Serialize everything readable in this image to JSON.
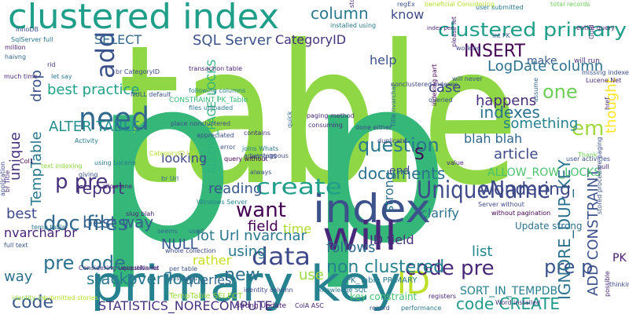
{
  "words": [
    {
      "text": "table",
      "color": "#8fd744"
    },
    {
      "text": "p p",
      "color": "#35b779"
    },
    {
      "text": "primary key",
      "color": "#26828e"
    },
    {
      "text": "clustered index",
      "color": "#1f9e89"
    },
    {
      "text": "index",
      "color": "#3b528b"
    },
    {
      "text": "will",
      "color": "#482878"
    },
    {
      "text": "need",
      "color": "#31688e"
    },
    {
      "text": "ID",
      "color": "#bddf26"
    },
    {
      "text": "clustered primary",
      "color": "#1f9e89"
    },
    {
      "text": "UniqueName",
      "color": "#3e4a89"
    },
    {
      "text": "create",
      "color": "#1f9e89"
    },
    {
      "text": "data",
      "color": "#3e4a89"
    },
    {
      "text": "add",
      "color": "#3b528b"
    },
    {
      "text": "want",
      "color": "#440154"
    },
    {
      "text": "question",
      "color": "#2a788e"
    },
    {
      "text": "doc files",
      "color": "#31688e"
    },
    {
      "text": "p pre",
      "color": "#46327e"
    },
    {
      "text": "pre p",
      "color": "#3b528b"
    },
    {
      "text": "code pre",
      "color": "#482878"
    },
    {
      "text": "pre code",
      "color": "#2c728e"
    },
    {
      "text": "code",
      "color": "#38588c"
    },
    {
      "text": "INSERT",
      "color": "#440154"
    },
    {
      "text": "column",
      "color": "#2a788e"
    },
    {
      "text": "SQL Server",
      "color": "#3b528b"
    },
    {
      "text": "CategoryID",
      "color": "#46337e"
    },
    {
      "text": "SELECT",
      "color": "#31688e"
    },
    {
      "text": "know",
      "color": "#3e4a89"
    },
    {
      "text": "make",
      "color": "#365d8d"
    },
    {
      "text": "LogDate column",
      "color": "#2c728e"
    },
    {
      "text": "one",
      "color": "#6ece58"
    },
    {
      "text": "help",
      "color": "#3b528b"
    },
    {
      "text": "case",
      "color": "#3e4a89"
    },
    {
      "text": "happens",
      "color": "#472d7b"
    },
    {
      "text": "indexes",
      "color": "#2c728e"
    },
    {
      "text": "em",
      "color": "#9fda3a"
    },
    {
      "text": "thought",
      "color": "#fde725"
    },
    {
      "text": "drop",
      "color": "#3b528b"
    },
    {
      "text": "best practice",
      "color": "#1fa187"
    },
    {
      "text": "ALTER TABLE",
      "color": "#228d8d"
    },
    {
      "text": "unique",
      "color": "#46327e"
    },
    {
      "text": "TempTable",
      "color": "#2a788e"
    },
    {
      "text": "report",
      "color": "#46337e"
    },
    {
      "text": "best way",
      "color": "#355f8d"
    },
    {
      "text": "best",
      "color": "#3e4a89"
    },
    {
      "text": "nvarchar br",
      "color": "#482475"
    },
    {
      "text": "way",
      "color": "#2c728e"
    },
    {
      "text": "NULL",
      "color": "#38588c"
    },
    {
      "text": "lot Url nvarchar",
      "color": "#2a788e"
    },
    {
      "text": "field",
      "color": "#440154"
    },
    {
      "text": "time",
      "color": "#b0dd2f"
    },
    {
      "text": "reading",
      "color": "#38588c"
    },
    {
      "text": "using",
      "color": "#2a788e"
    },
    {
      "text": "rather",
      "color": "#c8e020"
    },
    {
      "text": "queries",
      "color": "#31688e"
    },
    {
      "text": "new",
      "color": "#2d708e"
    },
    {
      "text": "use",
      "color": "#9bd93c"
    },
    {
      "text": "stackoverflow",
      "color": "#2a788e"
    },
    {
      "text": "STATISTICS_NORECOMPUTE",
      "color": "#46327e"
    },
    {
      "text": "non clustered",
      "color": "#26828e"
    },
    {
      "text": "follows",
      "color": "#2e6e8e"
    },
    {
      "text": "ID field",
      "color": "#472d7b"
    },
    {
      "text": "list",
      "color": "#24878e"
    },
    {
      "text": "SORT_IN_TEMPDB",
      "color": "#277f8e"
    },
    {
      "text": "code CREATE",
      "color": "#1f9a8a"
    },
    {
      "text": "IGNORE_DUP_KEY",
      "color": "#2c728e"
    },
    {
      "text": "ADD CONSTRAINT",
      "color": "#3b528b"
    },
    {
      "text": "PK",
      "color": "#481a6c"
    },
    {
      "text": "ALLOW_ROW_LOCKS",
      "color": "#4ac16d"
    },
    {
      "text": "wondering",
      "color": "#3e4a89"
    },
    {
      "text": "end",
      "color": "#3e4a89"
    },
    {
      "text": "strong",
      "color": "#2d708e"
    },
    {
      "text": "S",
      "color": "#440154"
    },
    {
      "text": "documents",
      "color": "#2c728e"
    },
    {
      "text": "article",
      "color": "#3e4a89"
    },
    {
      "text": "something",
      "color": "#26828e"
    },
    {
      "text": "blah blah",
      "color": "#31688e"
    },
    {
      "text": "clarify",
      "color": "#2c728e"
    },
    {
      "text": "ALLOW_PAGE_LOCKS",
      "color": "#2db27d"
    },
    {
      "text": "looking",
      "color": "#3e4a89"
    },
    {
      "text": "CONSTRAINT PK_Table",
      "color": "#38b977"
    },
    {
      "text": "Update strong",
      "color": "#2d708e"
    },
    {
      "text": "key constraint",
      "color": "#44bf70"
    },
    {
      "text": "PK_Table PRIMARY",
      "color": "#2a788e"
    },
    {
      "text": "TempTable SELECT",
      "color": "#9bd93c"
    },
    {
      "text": "strong Update",
      "color": "#481f70"
    },
    {
      "text": "regEx",
      "color": "#3b528b"
    },
    {
      "text": "beneficial Considering",
      "color": "#b5de2b"
    },
    {
      "text": "total records",
      "color": "#6ccd5a"
    },
    {
      "text": "user submitted",
      "color": "#2a788e"
    },
    {
      "text": "stories will",
      "color": "#46327e"
    },
    {
      "text": "installed using",
      "color": "#2a788e"
    },
    {
      "text": "index per",
      "color": "#482878"
    },
    {
      "text": "int FK",
      "color": "#3b528b"
    },
    {
      "text": "entire query",
      "color": "#482475"
    },
    {
      "text": "Guid",
      "color": "#46337e"
    },
    {
      "text": "working",
      "color": "#3e4a89"
    },
    {
      "text": "nonclustered indexes",
      "color": "#3e4a89"
    },
    {
      "text": "missing indexes",
      "color": "#3b528b"
    },
    {
      "text": "Lucene Net",
      "color": "#482878"
    },
    {
      "text": "will run",
      "color": "#46327e"
    },
    {
      "text": "InnoDB",
      "color": "#3b528b"
    },
    {
      "text": "SqlServer full",
      "color": "#2a788e"
    },
    {
      "text": "million",
      "color": "#482475"
    },
    {
      "text": "haivng",
      "color": "#31688e"
    },
    {
      "text": "rid",
      "color": "#46327e"
    },
    {
      "text": "let say",
      "color": "#2a788e"
    },
    {
      "text": "br CategoryID",
      "color": "#3e4a89"
    },
    {
      "text": "much time",
      "color": "#482878"
    },
    {
      "text": "NULL default",
      "color": "#3b528b"
    },
    {
      "text": "transaction table",
      "color": "#482475"
    },
    {
      "text": "following columns",
      "color": "#26828e"
    },
    {
      "text": "files uploaded",
      "color": "#2a788e"
    },
    {
      "text": "paging method",
      "color": "#482878"
    },
    {
      "text": "done either",
      "color": "#3e4a89"
    },
    {
      "text": "queried",
      "color": "#3b528b"
    },
    {
      "text": "indexing part",
      "color": "#440154"
    },
    {
      "text": "please let",
      "color": "#482475"
    },
    {
      "text": "will never",
      "color": "#3b528b"
    },
    {
      "text": "assume",
      "color": "#31688e"
    },
    {
      "text": "href",
      "color": "#482878"
    },
    {
      "text": "place nonclustered",
      "color": "#3e4a89"
    },
    {
      "text": "quick",
      "color": "#31688e"
    },
    {
      "text": "consuming",
      "color": "#46327e"
    },
    {
      "text": "appreciated",
      "color": "#3b528b"
    },
    {
      "text": "Activity",
      "color": "#2a788e"
    },
    {
      "text": "CategoryID int",
      "color": "#b5de2b"
    },
    {
      "text": "Col1",
      "color": "#440154"
    },
    {
      "text": "giving",
      "color": "#3b528b"
    },
    {
      "text": "allow one",
      "color": "#482475"
    },
    {
      "text": "br Url",
      "color": "#31688e"
    },
    {
      "text": "text indexing",
      "color": "#8fd744"
    },
    {
      "text": "application",
      "color": "#3e4a89"
    },
    {
      "text": "br Title",
      "color": "#482878"
    },
    {
      "text": "using Lucene",
      "color": "#2a788e"
    },
    {
      "text": "error",
      "color": "#3b528b"
    },
    {
      "text": "query without",
      "color": "#440154"
    },
    {
      "text": "contains",
      "color": "#46327e"
    },
    {
      "text": "duplicate",
      "color": "#3e4a89"
    },
    {
      "text": "Title nvarchar",
      "color": "#31688e"
    },
    {
      "text": "Thank",
      "color": "#6ece58"
    },
    {
      "text": "pull",
      "color": "#482475"
    },
    {
      "text": "user activities",
      "color": "#3b528b"
    },
    {
      "text": "value",
      "color": "#482878"
    },
    {
      "text": "joins Whats",
      "color": "#2a788e"
    },
    {
      "text": "using IIS",
      "color": "#3e4a89"
    },
    {
      "text": "always",
      "color": "#3b528b"
    },
    {
      "text": "Windows Server",
      "color": "#26828e"
    },
    {
      "text": "without pagination",
      "color": "#440154"
    },
    {
      "text": "Server without",
      "color": "#3e4a89"
    },
    {
      "text": "slug blah",
      "color": "#482475"
    },
    {
      "text": "seems",
      "color": "#31688e"
    },
    {
      "text": "temp table",
      "color": "#2a788e"
    },
    {
      "text": "full text",
      "color": "#3b528b"
    },
    {
      "text": "Considering UniqueName",
      "color": "#46327e"
    },
    {
      "text": "whole collection",
      "color": "#3e4a89"
    },
    {
      "text": "question let",
      "color": "#482878"
    },
    {
      "text": "per table",
      "color": "#3b528b"
    },
    {
      "text": "knowledge SQL",
      "color": "#2a788e"
    },
    {
      "text": "registers",
      "color": "#482475"
    },
    {
      "text": "assumed",
      "color": "#31688e"
    },
    {
      "text": "identity column",
      "color": "#3e4a89"
    },
    {
      "text": "ColA ASC",
      "color": "#482878"
    },
    {
      "text": "record",
      "color": "#3b528b"
    },
    {
      "text": "performance",
      "color": "#2a788e"
    },
    {
      "text": "Word installed",
      "color": "#46327e"
    },
    {
      "text": "possible",
      "color": "#482475"
    },
    {
      "text": "thinking",
      "color": "#3e4a89"
    },
    {
      "text": "used",
      "color": "#31688e"
    },
    {
      "text": "stored procedure paging",
      "color": "#3b528b"
    },
    {
      "text": "identity int",
      "color": "#8fd744"
    },
    {
      "text": "submitted stories",
      "color": "#b5de2b"
    },
    {
      "text": "advantageous",
      "color": "#3e4a89"
    }
  ]
}
